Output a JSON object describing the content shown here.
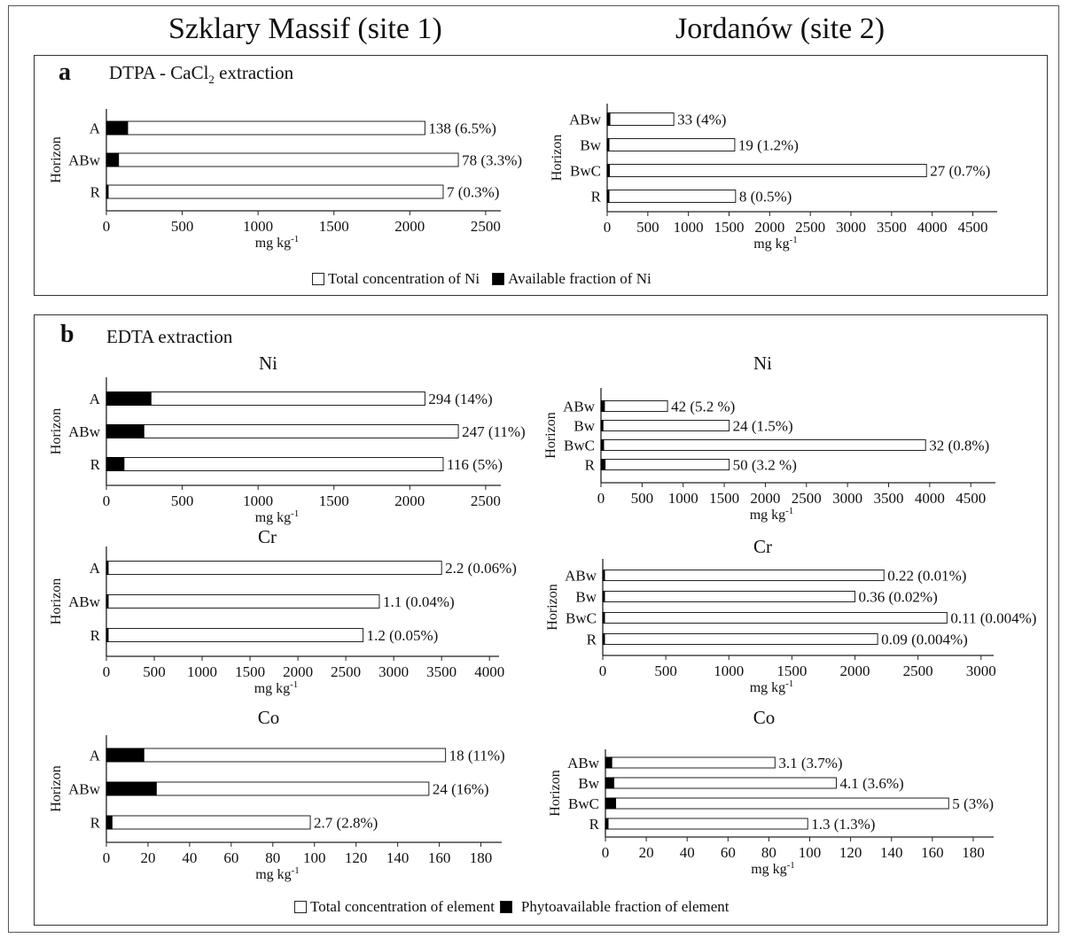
{
  "site_titles": {
    "site1": "Szklary Massif (site 1)",
    "site2": "Jordanów (site 2)"
  },
  "panel_a": {
    "letter": "a",
    "title_main": "DTPA - CaCl",
    "title_sub": "2",
    "title_tail": " extraction",
    "legend": {
      "total": "Total concentration of Ni",
      "available": "Available fraction of Ni"
    }
  },
  "panel_b": {
    "letter": "b",
    "title": "EDTA extraction",
    "legend": {
      "total": "Total concentration of element",
      "available": "Phytoavailable fraction of element"
    }
  },
  "chart_data": [
    {
      "id": "a1",
      "type": "bar",
      "orientation": "horizontal",
      "stacked": true,
      "title": "",
      "xlabel": "mg kg",
      "xlabel_sup": "-1",
      "ylabel": "Horizon",
      "xlim": [
        0,
        2600
      ],
      "xticks": [
        0,
        500,
        1000,
        1500,
        2000,
        2500
      ],
      "categories": [
        "A",
        "ABw",
        "R"
      ],
      "series": [
        {
          "name": "Available fraction of Ni",
          "values": [
            140,
            80,
            7
          ]
        },
        {
          "name": "Total concentration of Ni",
          "values": [
            2100,
            2320,
            2220
          ]
        }
      ],
      "data_labels": [
        "138 (6.5%)",
        "78 (3.3%)",
        "7 (0.3%)"
      ]
    },
    {
      "id": "a2",
      "type": "bar",
      "orientation": "horizontal",
      "stacked": true,
      "title": "",
      "xlabel": "mg kg",
      "xlabel_sup": "-1",
      "ylabel": "Horizon",
      "xlim": [
        0,
        4800
      ],
      "xticks": [
        0,
        500,
        1000,
        1500,
        2000,
        2500,
        3000,
        3500,
        4000,
        4500
      ],
      "categories": [
        "ABw",
        "Bw",
        "BwC",
        "R"
      ],
      "series": [
        {
          "name": "Available fraction of Ni",
          "values": [
            33,
            19,
            27,
            8
          ]
        },
        {
          "name": "Total concentration of Ni",
          "values": [
            820,
            1570,
            3930,
            1580
          ]
        }
      ],
      "data_labels": [
        "33 (4%)",
        "19 (1.2%)",
        "27 (0.7%)",
        "8 (0.5%)"
      ]
    },
    {
      "id": "b-ni-1",
      "type": "bar",
      "orientation": "horizontal",
      "stacked": true,
      "title": "Ni",
      "xlabel": "mg kg",
      "xlabel_sup": "-1",
      "ylabel": "Horizon",
      "xlim": [
        0,
        2600
      ],
      "xticks": [
        0,
        500,
        1000,
        1500,
        2000,
        2500
      ],
      "categories": [
        "A",
        "ABw",
        "R"
      ],
      "series": [
        {
          "name": "Phytoavailable fraction of element",
          "values": [
            294,
            247,
            116
          ]
        },
        {
          "name": "Total concentration of element",
          "values": [
            2100,
            2320,
            2220
          ]
        }
      ],
      "data_labels": [
        "294 (14%)",
        "247 (11%)",
        "116 (5%)"
      ]
    },
    {
      "id": "b-ni-2",
      "type": "bar",
      "orientation": "horizontal",
      "stacked": true,
      "title": "Ni",
      "xlabel": "mg kg",
      "xlabel_sup": "-1",
      "ylabel": "Horizon",
      "xlim": [
        0,
        4800
      ],
      "xticks": [
        0,
        500,
        1000,
        1500,
        2000,
        2500,
        3000,
        3500,
        4000,
        4500
      ],
      "categories": [
        "ABw",
        "Bw",
        "BwC",
        "R"
      ],
      "series": [
        {
          "name": "Phytoavailable fraction of element",
          "values": [
            42,
            24,
            32,
            50
          ]
        },
        {
          "name": "Total concentration of element",
          "values": [
            810,
            1560,
            3950,
            1560
          ]
        }
      ],
      "data_labels": [
        "42 (5.2 %)",
        "24 (1.5%)",
        "32 (0.8%)",
        "50 (3.2 %)"
      ]
    },
    {
      "id": "b-cr-1",
      "type": "bar",
      "orientation": "horizontal",
      "stacked": true,
      "title": "Cr",
      "xlabel": "mg kg",
      "xlabel_sup": "-1",
      "ylabel": "Horizon",
      "xlim": [
        0,
        4100
      ],
      "xticks": [
        0,
        500,
        1000,
        1500,
        2000,
        2500,
        3000,
        3500,
        4000
      ],
      "categories": [
        "A",
        "ABw",
        "R"
      ],
      "series": [
        {
          "name": "Phytoavailable fraction of element",
          "values": [
            2.2,
            1.1,
            1.2
          ]
        },
        {
          "name": "Total concentration of element",
          "values": [
            3500,
            2850,
            2680
          ]
        }
      ],
      "data_labels": [
        "2.2 (0.06%)",
        "1.1 (0.04%)",
        "1.2 (0.05%)"
      ]
    },
    {
      "id": "b-cr-2",
      "type": "bar",
      "orientation": "horizontal",
      "stacked": true,
      "title": "Cr",
      "xlabel": "mg kg",
      "xlabel_sup": "-1",
      "ylabel": "Horizon",
      "xlim": [
        0,
        3100
      ],
      "xticks": [
        0,
        500,
        1000,
        1500,
        2000,
        2500,
        3000
      ],
      "categories": [
        "ABw",
        "Bw",
        "BwC",
        "R"
      ],
      "series": [
        {
          "name": "Phytoavailable fraction of element",
          "values": [
            0.22,
            0.36,
            0.11,
            0.09
          ]
        },
        {
          "name": "Total concentration of element",
          "values": [
            2230,
            2000,
            2730,
            2180
          ]
        }
      ],
      "data_labels": [
        "0.22 (0.01%)",
        "0.36 (0.02%)",
        "0.11 (0.004%)",
        "0.09 (0.004%)"
      ]
    },
    {
      "id": "b-co-1",
      "type": "bar",
      "orientation": "horizontal",
      "stacked": true,
      "title": "Co",
      "xlabel": "mg kg",
      "xlabel_sup": "-1",
      "ylabel": "Horizon",
      "xlim": [
        0,
        190
      ],
      "xticks": [
        0,
        20,
        40,
        60,
        80,
        100,
        120,
        140,
        160,
        180
      ],
      "categories": [
        "A",
        "ABw",
        "R"
      ],
      "series": [
        {
          "name": "Phytoavailable fraction of element",
          "values": [
            18,
            24,
            2.7
          ]
        },
        {
          "name": "Total concentration of element",
          "values": [
            163,
            155,
            98
          ]
        }
      ],
      "data_labels": [
        "18 (11%)",
        "24 (16%)",
        "2.7 (2.8%)"
      ]
    },
    {
      "id": "b-co-2",
      "type": "bar",
      "orientation": "horizontal",
      "stacked": true,
      "title": "Co",
      "xlabel": "mg kg",
      "xlabel_sup": "-1",
      "ylabel": "Horizon",
      "xlim": [
        0,
        190
      ],
      "xticks": [
        0,
        20,
        40,
        60,
        80,
        100,
        120,
        140,
        160,
        180
      ],
      "categories": [
        "ABw",
        "Bw",
        "BwC",
        "R"
      ],
      "series": [
        {
          "name": "Phytoavailable fraction of element",
          "values": [
            3.1,
            4.1,
            5,
            1.3
          ]
        },
        {
          "name": "Total concentration of element",
          "values": [
            83,
            113,
            168,
            99
          ]
        }
      ],
      "data_labels": [
        "3.1 (3.7%)",
        "4.1 (3.6%)",
        "5 (3%)",
        "1.3 (1.3%)"
      ]
    }
  ]
}
